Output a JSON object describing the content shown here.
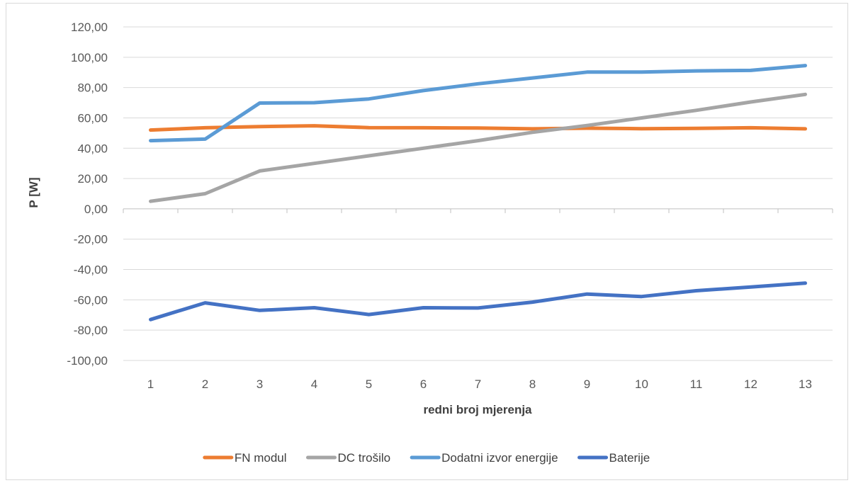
{
  "chart_data": {
    "type": "line",
    "title": "",
    "xlabel": "redni broj mjerenja",
    "ylabel": "P [W]",
    "x": [
      1,
      2,
      3,
      4,
      5,
      6,
      7,
      8,
      9,
      10,
      11,
      12,
      13
    ],
    "ylim": [
      -100,
      120
    ],
    "yticks": [
      120,
      100,
      80,
      60,
      40,
      20,
      0,
      -20,
      -40,
      -60,
      -80,
      -100
    ],
    "ytick_labels": [
      "120,00",
      "100,00",
      "80,00",
      "60,00",
      "40,00",
      "20,00",
      "0,00",
      "-20,00",
      "-40,00",
      "-60,00",
      "-80,00",
      "-100,00"
    ],
    "grid": true,
    "legend_position": "bottom",
    "series": [
      {
        "name": "FN modul",
        "color": "#ed7d31",
        "values": [
          52.0,
          53.5,
          54.3,
          54.8,
          53.6,
          53.5,
          53.3,
          52.8,
          53.2,
          52.9,
          53.1,
          53.5,
          52.8
        ]
      },
      {
        "name": "DC trošilo",
        "color": "#a5a5a5",
        "values": [
          5.0,
          10.0,
          25.0,
          30.0,
          35.0,
          40.0,
          45.0,
          50.5,
          55.0,
          60.0,
          65.0,
          70.5,
          75.5
        ]
      },
      {
        "name": "Dodatni izvor energije",
        "color": "#5b9bd5",
        "values": [
          45.0,
          46.0,
          69.8,
          70.0,
          72.5,
          78.0,
          82.5,
          86.3,
          90.2,
          90.2,
          91.0,
          91.3,
          94.5
        ]
      },
      {
        "name": "Baterije",
        "color": "#4472c4",
        "values": [
          -73.0,
          -62.0,
          -67.0,
          -65.2,
          -69.7,
          -65.2,
          -65.4,
          -61.5,
          -56.2,
          -57.8,
          -54.0,
          -51.5,
          -49.0
        ]
      }
    ]
  }
}
